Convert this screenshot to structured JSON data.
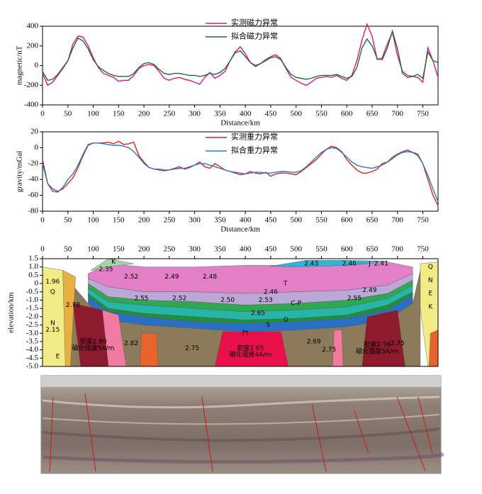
{
  "chart_data": [
    {
      "type": "line",
      "x_label": "Distance/km",
      "y_label": "magnetic/nT",
      "x": [
        0,
        10,
        20,
        30,
        40,
        50,
        60,
        70,
        80,
        90,
        100,
        110,
        120,
        130,
        140,
        150,
        160,
        170,
        180,
        190,
        200,
        210,
        220,
        230,
        240,
        250,
        260,
        270,
        280,
        290,
        300,
        310,
        320,
        330,
        340,
        350,
        360,
        370,
        380,
        390,
        400,
        410,
        420,
        430,
        440,
        450,
        460,
        470,
        480,
        490,
        500,
        510,
        520,
        530,
        540,
        550,
        560,
        570,
        580,
        590,
        600,
        610,
        620,
        630,
        640,
        650,
        660,
        670,
        680,
        690,
        700,
        710,
        720,
        730,
        740,
        750,
        760,
        770,
        780
      ],
      "xlim": [
        0,
        780
      ],
      "xticks": [
        0,
        50,
        100,
        150,
        200,
        250,
        300,
        350,
        400,
        450,
        500,
        550,
        600,
        650,
        700,
        750
      ],
      "ylim": [
        -400,
        400
      ],
      "yticks": [
        -400,
        -200,
        0,
        200,
        400
      ],
      "series": [
        {
          "name": "实测磁力异常",
          "color": "#e0157f",
          "values": [
            -80,
            -200,
            -170,
            -100,
            -30,
            50,
            220,
            300,
            290,
            200,
            80,
            -20,
            -80,
            -100,
            -120,
            -160,
            -150,
            -150,
            -100,
            -30,
            0,
            10,
            0,
            -60,
            -130,
            -150,
            -130,
            -120,
            -140,
            -150,
            -170,
            -190,
            -120,
            -70,
            -130,
            -100,
            -60,
            50,
            140,
            190,
            120,
            30,
            -10,
            20,
            60,
            90,
            110,
            70,
            -30,
            -120,
            -150,
            -180,
            -200,
            -170,
            -130,
            -120,
            -110,
            -120,
            -100,
            -130,
            -150,
            -100,
            50,
            260,
            420,
            300,
            60,
            80,
            220,
            340,
            100,
            -60,
            -100,
            -110,
            -120,
            -170,
            180,
            50,
            -120
          ]
        },
        {
          "name": "拟合磁力异常",
          "color": "#1e6b3a",
          "values": [
            -60,
            -150,
            -140,
            -90,
            -20,
            50,
            180,
            280,
            250,
            170,
            60,
            -10,
            -50,
            -80,
            -100,
            -110,
            -110,
            -110,
            -80,
            -20,
            20,
            30,
            10,
            -40,
            -80,
            -90,
            -80,
            -80,
            -90,
            -100,
            -100,
            -110,
            -100,
            -80,
            -90,
            -70,
            -30,
            50,
            130,
            150,
            90,
            30,
            0,
            20,
            50,
            80,
            90,
            60,
            -20,
            -90,
            -120,
            -130,
            -140,
            -130,
            -110,
            -100,
            -100,
            -100,
            -90,
            -110,
            -130,
            -110,
            -20,
            180,
            270,
            200,
            70,
            60,
            180,
            350,
            170,
            -80,
            -120,
            -110,
            -90,
            -130,
            140,
            50,
            30
          ]
        }
      ]
    },
    {
      "type": "line",
      "x_label": "Distance/km",
      "y_label": "gravity/mGal",
      "x": [
        0,
        10,
        20,
        30,
        40,
        50,
        60,
        70,
        80,
        90,
        100,
        110,
        120,
        130,
        140,
        150,
        160,
        170,
        180,
        190,
        200,
        210,
        220,
        230,
        240,
        250,
        260,
        270,
        280,
        290,
        300,
        310,
        320,
        330,
        340,
        350,
        360,
        370,
        380,
        390,
        400,
        410,
        420,
        430,
        440,
        450,
        460,
        470,
        480,
        490,
        500,
        510,
        520,
        530,
        540,
        550,
        560,
        570,
        580,
        590,
        600,
        610,
        620,
        630,
        640,
        650,
        660,
        670,
        680,
        690,
        700,
        710,
        720,
        730,
        740,
        750,
        760,
        770,
        780
      ],
      "xlim": [
        0,
        780
      ],
      "xticks": [
        0,
        50,
        100,
        150,
        200,
        250,
        300,
        350,
        400,
        450,
        500,
        550,
        600,
        650,
        700,
        750
      ],
      "ylim": [
        -80,
        20
      ],
      "yticks": [
        -80,
        -60,
        -40,
        -20,
        0,
        20
      ],
      "series": [
        {
          "name": "实测重力异常",
          "color": "#e02020",
          "values": [
            -15,
            -45,
            -52,
            -55,
            -52,
            -45,
            -38,
            -25,
            -10,
            3,
            6,
            6,
            6,
            7,
            5,
            8,
            4,
            5,
            7,
            -10,
            -18,
            -25,
            -27,
            -28,
            -29,
            -28,
            -26,
            -24,
            -27,
            -25,
            -22,
            -18,
            -24,
            -26,
            -20,
            -24,
            -28,
            -30,
            -32,
            -34,
            -33,
            -30,
            -32,
            -33,
            -31,
            -36,
            -33,
            -32,
            -32,
            -33,
            -34,
            -30,
            -25,
            -20,
            -15,
            -8,
            -2,
            2,
            0,
            -5,
            -15,
            -22,
            -28,
            -32,
            -32,
            -30,
            -27,
            -20,
            -18,
            -12,
            -8,
            -5,
            -3,
            -6,
            -8,
            -20,
            -40,
            -60,
            -73
          ]
        },
        {
          "name": "拟合重力异常",
          "color": "#2a7ac8",
          "values": [
            -20,
            -45,
            -55,
            -56,
            -50,
            -40,
            -33,
            -22,
            -8,
            4,
            6,
            6,
            5,
            4,
            3,
            3,
            2,
            0,
            -5,
            -12,
            -20,
            -25,
            -27,
            -27,
            -28,
            -28,
            -27,
            -26,
            -26,
            -24,
            -22,
            -20,
            -20,
            -22,
            -24,
            -26,
            -28,
            -30,
            -31,
            -32,
            -33,
            -32,
            -31,
            -31,
            -32,
            -32,
            -31,
            -30,
            -30,
            -31,
            -31,
            -29,
            -24,
            -18,
            -12,
            -6,
            -2,
            0,
            -1,
            -6,
            -12,
            -18,
            -22,
            -24,
            -25,
            -26,
            -24,
            -22,
            -18,
            -14,
            -9,
            -6,
            -5,
            -6,
            -10,
            -20,
            -35,
            -52,
            -68
          ]
        }
      ]
    },
    {
      "type": "section",
      "y_label": "elevation/km",
      "xlim": [
        0,
        780
      ],
      "xticks": [
        0,
        50,
        100,
        150,
        200,
        250,
        300,
        350,
        400,
        450,
        500,
        550,
        600,
        650,
        700,
        750
      ],
      "ylim": [
        -5,
        1.5
      ],
      "yticks": [
        1.5,
        {
          "value": 1,
          "label": "1.0"
        },
        0.5,
        0,
        -0.5,
        {
          "value": -1,
          "label": "-1.0"
        },
        -1.5,
        {
          "value": -2,
          "label": "-2.0"
        },
        -2.5,
        {
          "value": -3,
          "label": "-3.0"
        },
        -3.5,
        {
          "value": -4,
          "label": "-4.0"
        },
        -4.5,
        {
          "value": -5,
          "label": "-5.0"
        }
      ],
      "labels": [
        "K",
        "2.35",
        "Q",
        "1.96",
        "2.52",
        "2.49",
        "2.48",
        "2.43",
        "2.46",
        "J",
        "2.41",
        "T",
        "2.46",
        "2.49",
        "Q",
        "N",
        "E",
        "K",
        "2.55",
        "2.52",
        "2.50",
        "2.53",
        "2.55",
        "C-P",
        "2.78",
        "2.65",
        "O",
        "S",
        "Pt",
        "N",
        "2.15",
        "E",
        "2.82",
        "2.75",
        "2.69",
        "2.75",
        "2.75",
        "密度2.80",
        "磁化强度5A/m",
        "密度2.65",
        "磁化强度4A/m",
        "密度2.78",
        "磁化强度5A/m"
      ]
    }
  ]
}
